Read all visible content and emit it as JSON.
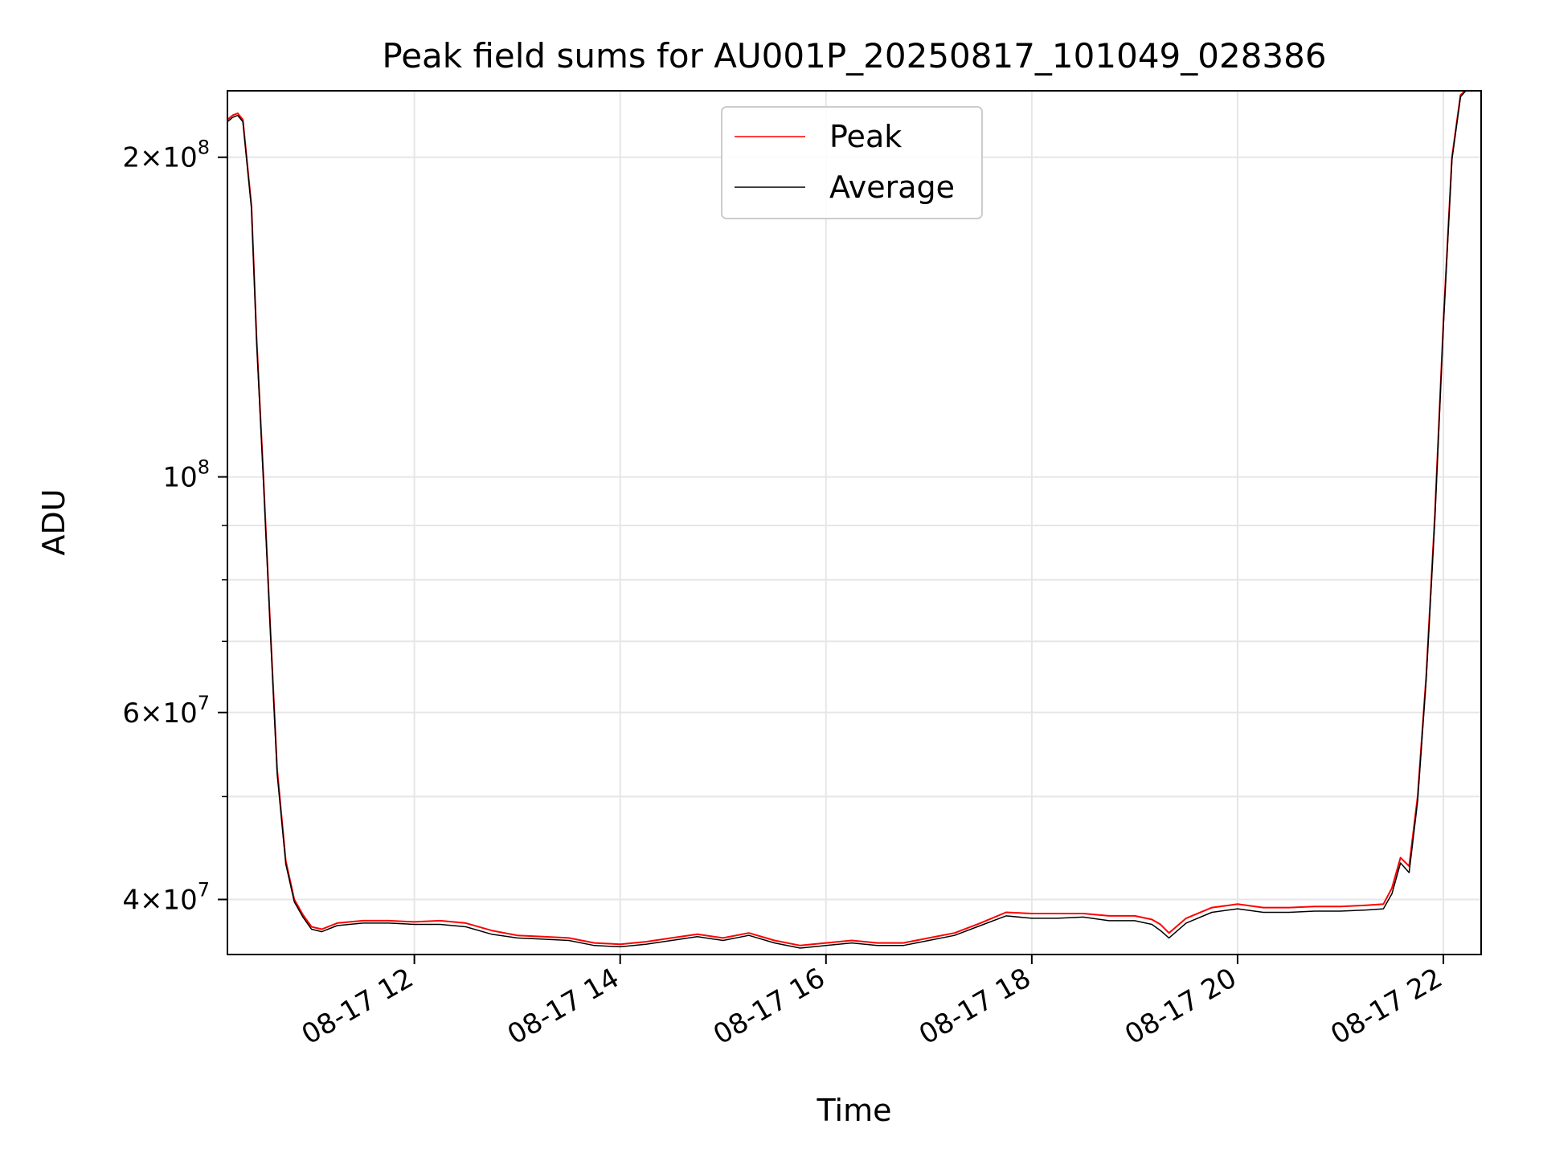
{
  "chart_data": {
    "type": "line",
    "title": "Peak field sums for AU001P_20250817_101049_028386",
    "xlabel": "Time",
    "ylabel": "ADU",
    "y_scale": "log",
    "xlim": [
      "2025-08-17 10:11",
      "2025-08-17 22:22"
    ],
    "ylim": [
      35500000,
      231000000
    ],
    "x_ticks": [
      {
        "value": "2025-08-17 12:00",
        "label": "08-17 12"
      },
      {
        "value": "2025-08-17 14:00",
        "label": "08-17 14"
      },
      {
        "value": "2025-08-17 16:00",
        "label": "08-17 16"
      },
      {
        "value": "2025-08-17 18:00",
        "label": "08-17 18"
      },
      {
        "value": "2025-08-17 20:00",
        "label": "08-17 20"
      },
      {
        "value": "2025-08-17 22:00",
        "label": "08-17 22"
      }
    ],
    "y_major_ticks": [
      {
        "value": 40000000,
        "mantissa": "4",
        "exp": "7"
      },
      {
        "value": 60000000,
        "mantissa": "6",
        "exp": "7"
      },
      {
        "value": 100000000,
        "mantissa": "",
        "exp": "8"
      },
      {
        "value": 200000000,
        "mantissa": "2",
        "exp": "8"
      }
    ],
    "y_minor_ticks": [
      50000000,
      70000000,
      80000000,
      90000000
    ],
    "grid": true,
    "legend_position": "top-center",
    "series": [
      {
        "name": "Peak",
        "color": "#ff0000",
        "x": [
          "2025-08-17 10:11",
          "2025-08-17 10:14",
          "2025-08-17 10:17",
          "2025-08-17 10:20",
          "2025-08-17 10:25",
          "2025-08-17 10:28",
          "2025-08-17 10:32",
          "2025-08-17 10:36",
          "2025-08-17 10:40",
          "2025-08-17 10:45",
          "2025-08-17 10:50",
          "2025-08-17 10:55",
          "2025-08-17 11:00",
          "2025-08-17 11:06",
          "2025-08-17 11:15",
          "2025-08-17 11:30",
          "2025-08-17 11:45",
          "2025-08-17 12:00",
          "2025-08-17 12:15",
          "2025-08-17 12:30",
          "2025-08-17 12:45",
          "2025-08-17 13:00",
          "2025-08-17 13:15",
          "2025-08-17 13:30",
          "2025-08-17 13:45",
          "2025-08-17 14:00",
          "2025-08-17 14:15",
          "2025-08-17 14:30",
          "2025-08-17 14:45",
          "2025-08-17 15:00",
          "2025-08-17 15:15",
          "2025-08-17 15:30",
          "2025-08-17 15:45",
          "2025-08-17 16:00",
          "2025-08-17 16:15",
          "2025-08-17 16:30",
          "2025-08-17 16:45",
          "2025-08-17 17:00",
          "2025-08-17 17:15",
          "2025-08-17 17:30",
          "2025-08-17 17:45",
          "2025-08-17 18:00",
          "2025-08-17 18:15",
          "2025-08-17 18:30",
          "2025-08-17 18:45",
          "2025-08-17 19:00",
          "2025-08-17 19:10",
          "2025-08-17 19:15",
          "2025-08-17 19:20",
          "2025-08-17 19:30",
          "2025-08-17 19:45",
          "2025-08-17 20:00",
          "2025-08-17 20:15",
          "2025-08-17 20:30",
          "2025-08-17 20:45",
          "2025-08-17 21:00",
          "2025-08-17 21:15",
          "2025-08-17 21:25",
          "2025-08-17 21:30",
          "2025-08-17 21:35",
          "2025-08-17 21:40",
          "2025-08-17 21:45",
          "2025-08-17 21:50",
          "2025-08-17 21:55",
          "2025-08-17 22:00",
          "2025-08-17 22:05",
          "2025-08-17 22:10",
          "2025-08-17 22:13"
        ],
        "y": [
          217000000,
          219000000,
          220000000,
          217000000,
          180000000,
          135000000,
          100000000,
          72000000,
          53000000,
          43500000,
          40000000,
          38700000,
          37700000,
          37500000,
          38000000,
          38200000,
          38200000,
          38100000,
          38200000,
          38000000,
          37400000,
          37000000,
          36900000,
          36800000,
          36400000,
          36300000,
          36500000,
          36800000,
          37100000,
          36800000,
          37200000,
          36600000,
          36200000,
          36400000,
          36600000,
          36400000,
          36400000,
          36800000,
          37200000,
          38000000,
          38900000,
          38800000,
          38800000,
          38800000,
          38600000,
          38600000,
          38300000,
          37900000,
          37200000,
          38400000,
          39300000,
          39600000,
          39300000,
          39300000,
          39400000,
          39400000,
          39500000,
          39600000,
          41000000,
          43800000,
          43000000,
          50000000,
          65000000,
          92000000,
          140000000,
          200000000,
          229000000,
          231000000
        ]
      },
      {
        "name": "Average",
        "color": "#000000",
        "x": [
          "2025-08-17 10:11",
          "2025-08-17 10:14",
          "2025-08-17 10:17",
          "2025-08-17 10:20",
          "2025-08-17 10:25",
          "2025-08-17 10:28",
          "2025-08-17 10:32",
          "2025-08-17 10:36",
          "2025-08-17 10:40",
          "2025-08-17 10:45",
          "2025-08-17 10:50",
          "2025-08-17 10:55",
          "2025-08-17 11:00",
          "2025-08-17 11:06",
          "2025-08-17 11:15",
          "2025-08-17 11:30",
          "2025-08-17 11:45",
          "2025-08-17 12:00",
          "2025-08-17 12:15",
          "2025-08-17 12:30",
          "2025-08-17 12:45",
          "2025-08-17 13:00",
          "2025-08-17 13:15",
          "2025-08-17 13:30",
          "2025-08-17 13:45",
          "2025-08-17 14:00",
          "2025-08-17 14:15",
          "2025-08-17 14:30",
          "2025-08-17 14:45",
          "2025-08-17 15:00",
          "2025-08-17 15:15",
          "2025-08-17 15:30",
          "2025-08-17 15:45",
          "2025-08-17 16:00",
          "2025-08-17 16:15",
          "2025-08-17 16:30",
          "2025-08-17 16:45",
          "2025-08-17 17:00",
          "2025-08-17 17:15",
          "2025-08-17 17:30",
          "2025-08-17 17:45",
          "2025-08-17 18:00",
          "2025-08-17 18:15",
          "2025-08-17 18:30",
          "2025-08-17 18:45",
          "2025-08-17 19:00",
          "2025-08-17 19:10",
          "2025-08-17 19:15",
          "2025-08-17 19:20",
          "2025-08-17 19:30",
          "2025-08-17 19:45",
          "2025-08-17 20:00",
          "2025-08-17 20:15",
          "2025-08-17 20:30",
          "2025-08-17 20:45",
          "2025-08-17 21:00",
          "2025-08-17 21:15",
          "2025-08-17 21:25",
          "2025-08-17 21:30",
          "2025-08-17 21:35",
          "2025-08-17 21:40",
          "2025-08-17 21:45",
          "2025-08-17 21:50",
          "2025-08-17 21:55",
          "2025-08-17 22:00",
          "2025-08-17 22:05",
          "2025-08-17 22:10",
          "2025-08-17 22:13"
        ],
        "y": [
          216000000,
          218000000,
          219000000,
          216000000,
          179000000,
          134000000,
          99000000,
          71500000,
          52500000,
          43200000,
          39800000,
          38500000,
          37500000,
          37300000,
          37800000,
          38000000,
          38000000,
          37900000,
          37900000,
          37700000,
          37100000,
          36800000,
          36700000,
          36600000,
          36200000,
          36100000,
          36300000,
          36600000,
          36900000,
          36600000,
          37000000,
          36400000,
          36000000,
          36200000,
          36400000,
          36200000,
          36200000,
          36600000,
          37000000,
          37800000,
          38600000,
          38400000,
          38400000,
          38500000,
          38200000,
          38200000,
          37900000,
          37400000,
          36800000,
          38000000,
          38900000,
          39200000,
          38900000,
          38900000,
          39000000,
          39000000,
          39100000,
          39200000,
          40500000,
          43300000,
          42400000,
          49500000,
          64500000,
          91000000,
          139000000,
          199000000,
          228000000,
          231000000
        ]
      }
    ]
  }
}
